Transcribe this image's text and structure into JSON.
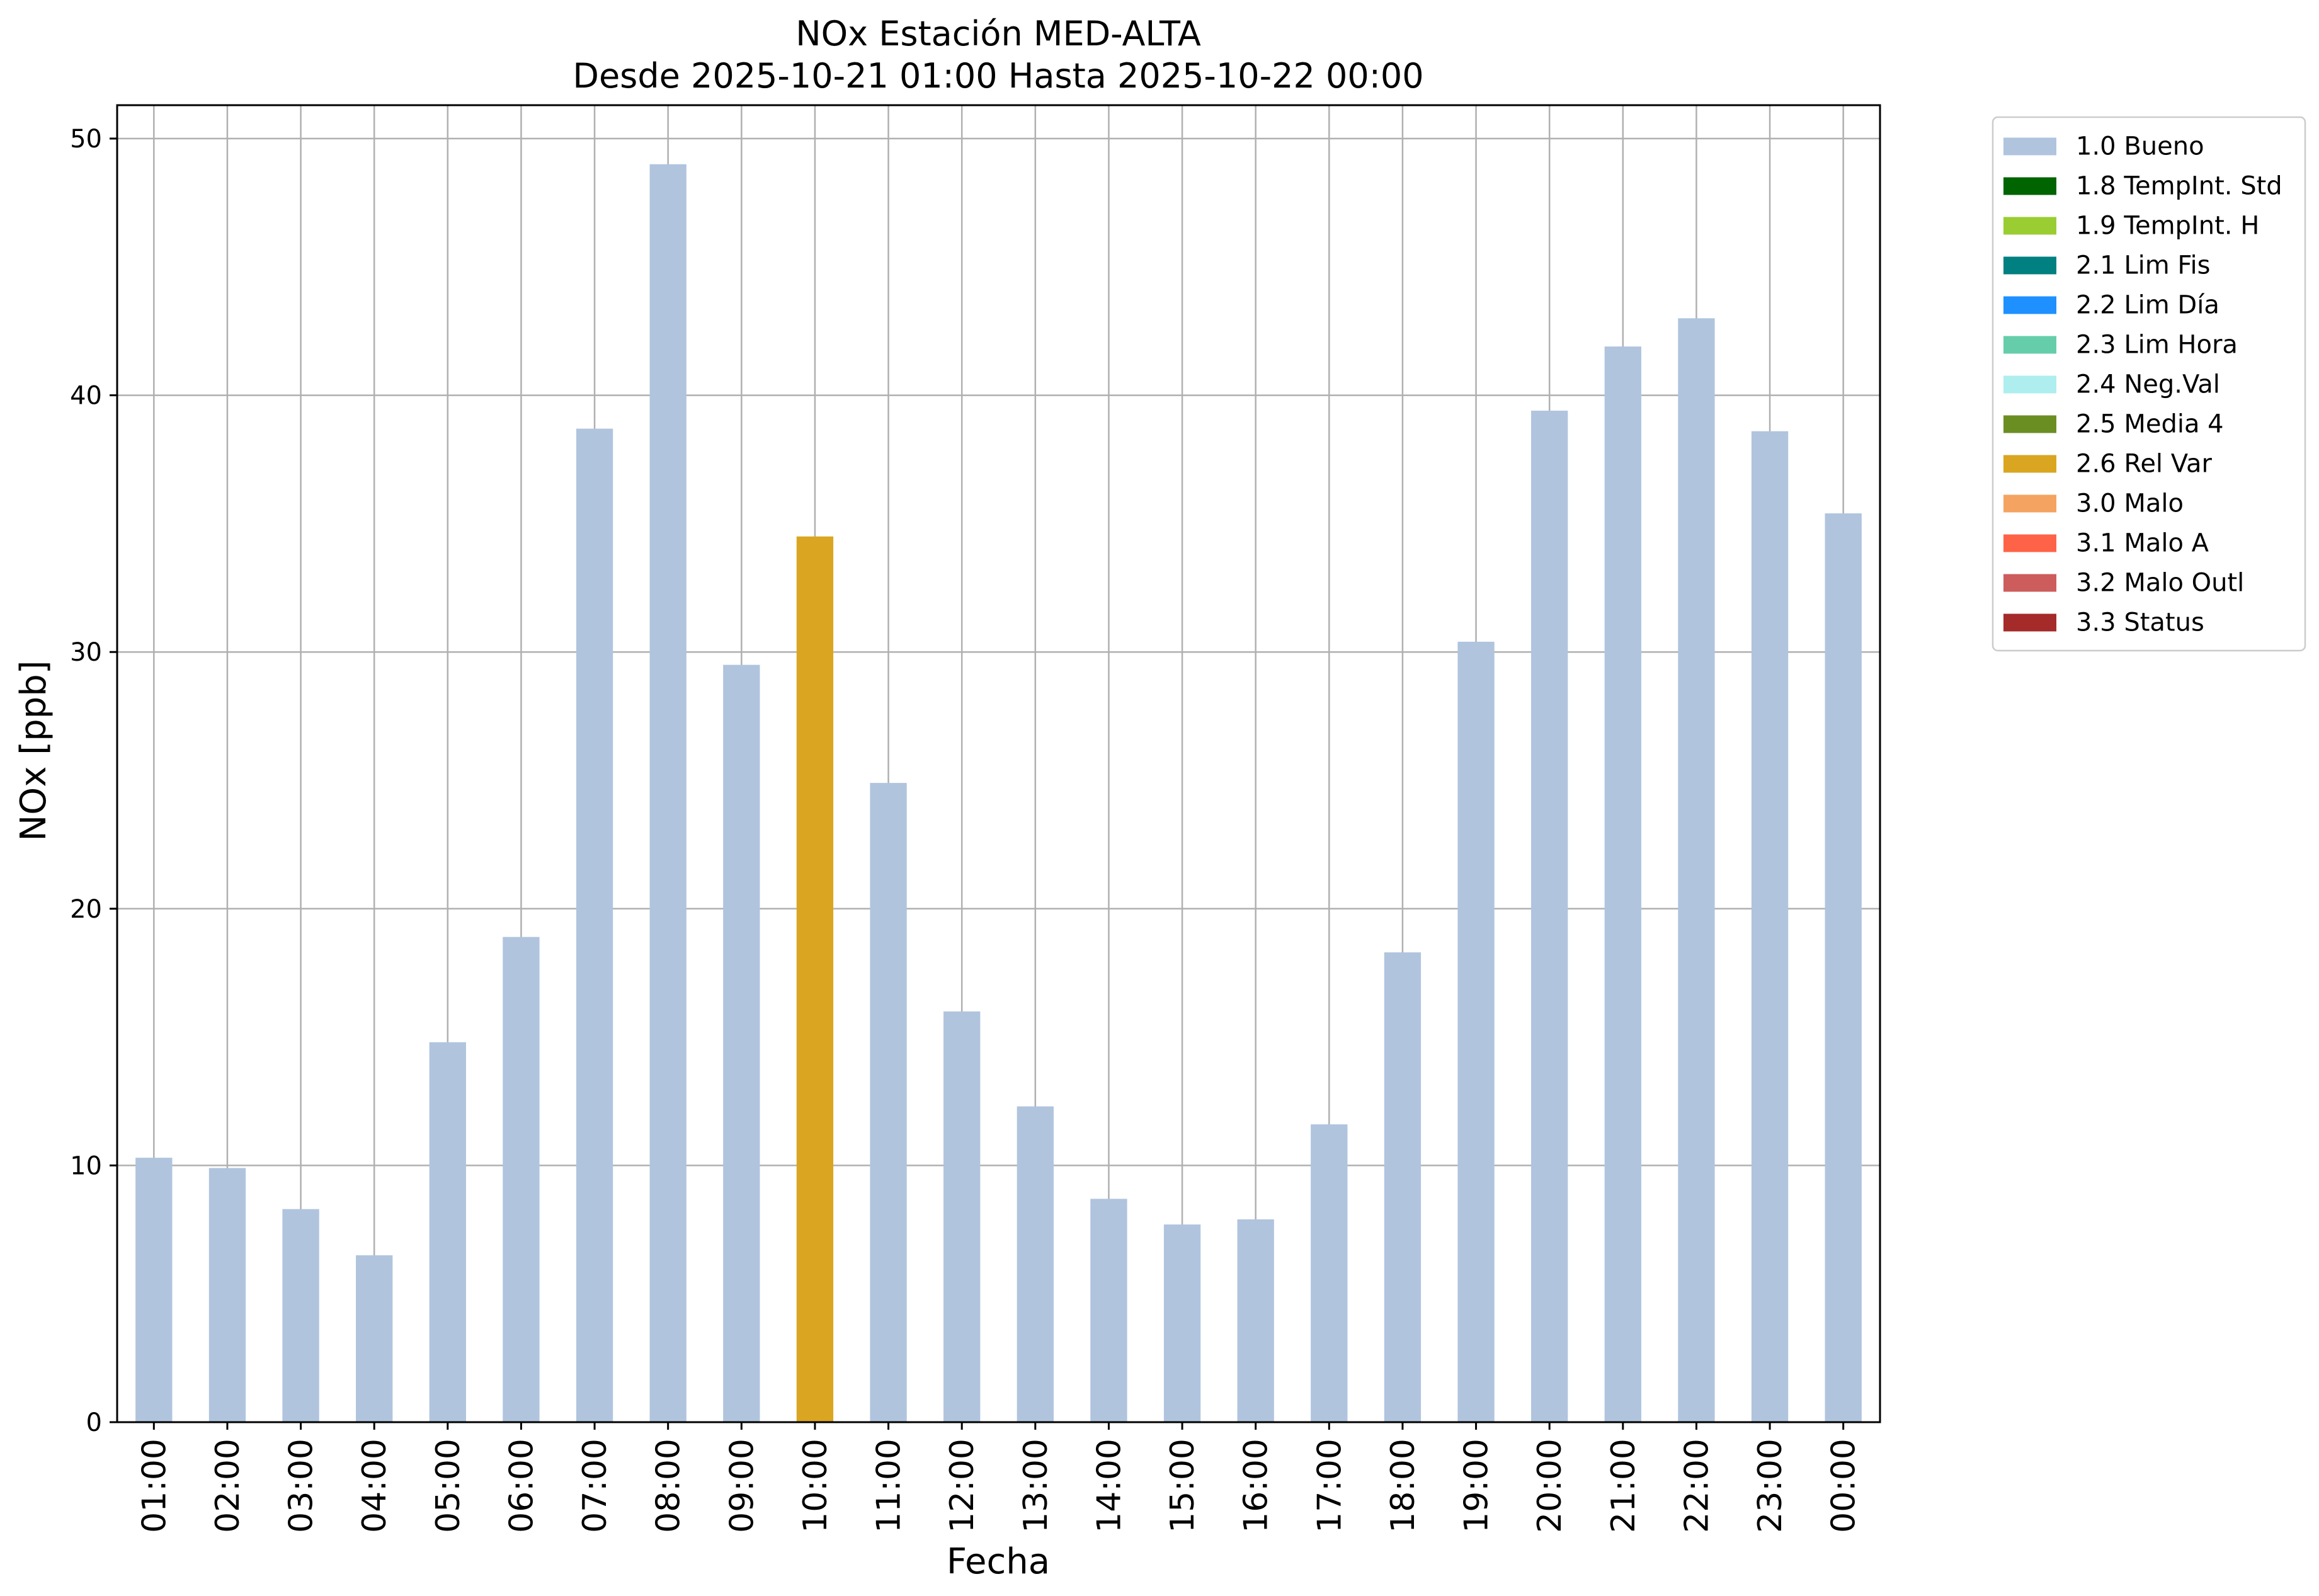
{
  "chart_data": {
    "type": "bar",
    "title": "NOx Estación MED-ALTA",
    "subtitle": "Desde 2025-10-21 01:00 Hasta 2025-10-22 00:00",
    "xlabel": "Fecha",
    "ylabel": "NOx [ppb]",
    "ylim": [
      0,
      51.3
    ],
    "yticks": [
      0,
      10,
      20,
      30,
      40,
      50
    ],
    "grid": true,
    "legend_position": "outside-top-right",
    "categories": [
      "01:00",
      "02:00",
      "03:00",
      "04:00",
      "05:00",
      "06:00",
      "07:00",
      "08:00",
      "09:00",
      "10:00",
      "11:00",
      "12:00",
      "13:00",
      "14:00",
      "15:00",
      "16:00",
      "17:00",
      "18:00",
      "19:00",
      "20:00",
      "21:00",
      "22:00",
      "23:00",
      "00:00"
    ],
    "values": [
      10.3,
      9.9,
      8.3,
      6.5,
      14.8,
      18.9,
      38.7,
      49.0,
      29.5,
      34.5,
      24.9,
      16.0,
      12.3,
      8.7,
      7.7,
      7.9,
      11.6,
      18.3,
      30.4,
      39.4,
      41.9,
      43.0,
      38.6,
      35.4
    ],
    "flags": [
      "1.0 Bueno",
      "1.0 Bueno",
      "1.0 Bueno",
      "1.0 Bueno",
      "1.0 Bueno",
      "1.0 Bueno",
      "1.0 Bueno",
      "1.0 Bueno",
      "1.0 Bueno",
      "2.6 Rel Var",
      "1.0 Bueno",
      "1.0 Bueno",
      "1.0 Bueno",
      "1.0 Bueno",
      "1.0 Bueno",
      "1.0 Bueno",
      "1.0 Bueno",
      "1.0 Bueno",
      "1.0 Bueno",
      "1.0 Bueno",
      "1.0 Bueno",
      "1.0 Bueno",
      "1.0 Bueno",
      "1.0 Bueno"
    ],
    "legend": [
      {
        "label": "1.0 Bueno",
        "color": "#b0c4de"
      },
      {
        "label": "1.8 TempInt. Std",
        "color": "#006400"
      },
      {
        "label": "1.9 TempInt. H",
        "color": "#9acd32"
      },
      {
        "label": "2.1 Lim Fis",
        "color": "#008080"
      },
      {
        "label": "2.2 Lim Día",
        "color": "#1e90ff"
      },
      {
        "label": "2.3 Lim Hora",
        "color": "#66cdaa"
      },
      {
        "label": "2.4 Neg.Val",
        "color": "#afeeee"
      },
      {
        "label": "2.5 Media 4",
        "color": "#6b8e23"
      },
      {
        "label": "2.6 Rel Var",
        "color": "#daa520"
      },
      {
        "label": "3.0 Malo",
        "color": "#f4a460"
      },
      {
        "label": "3.1 Malo A",
        "color": "#ff6347"
      },
      {
        "label": "3.2 Malo Outl",
        "color": "#cd5c5c"
      },
      {
        "label": "3.3 Status",
        "color": "#a52a2a"
      }
    ],
    "colors": {
      "grid": "#b0b0b0",
      "axis": "#000000",
      "background": "#ffffff"
    }
  }
}
